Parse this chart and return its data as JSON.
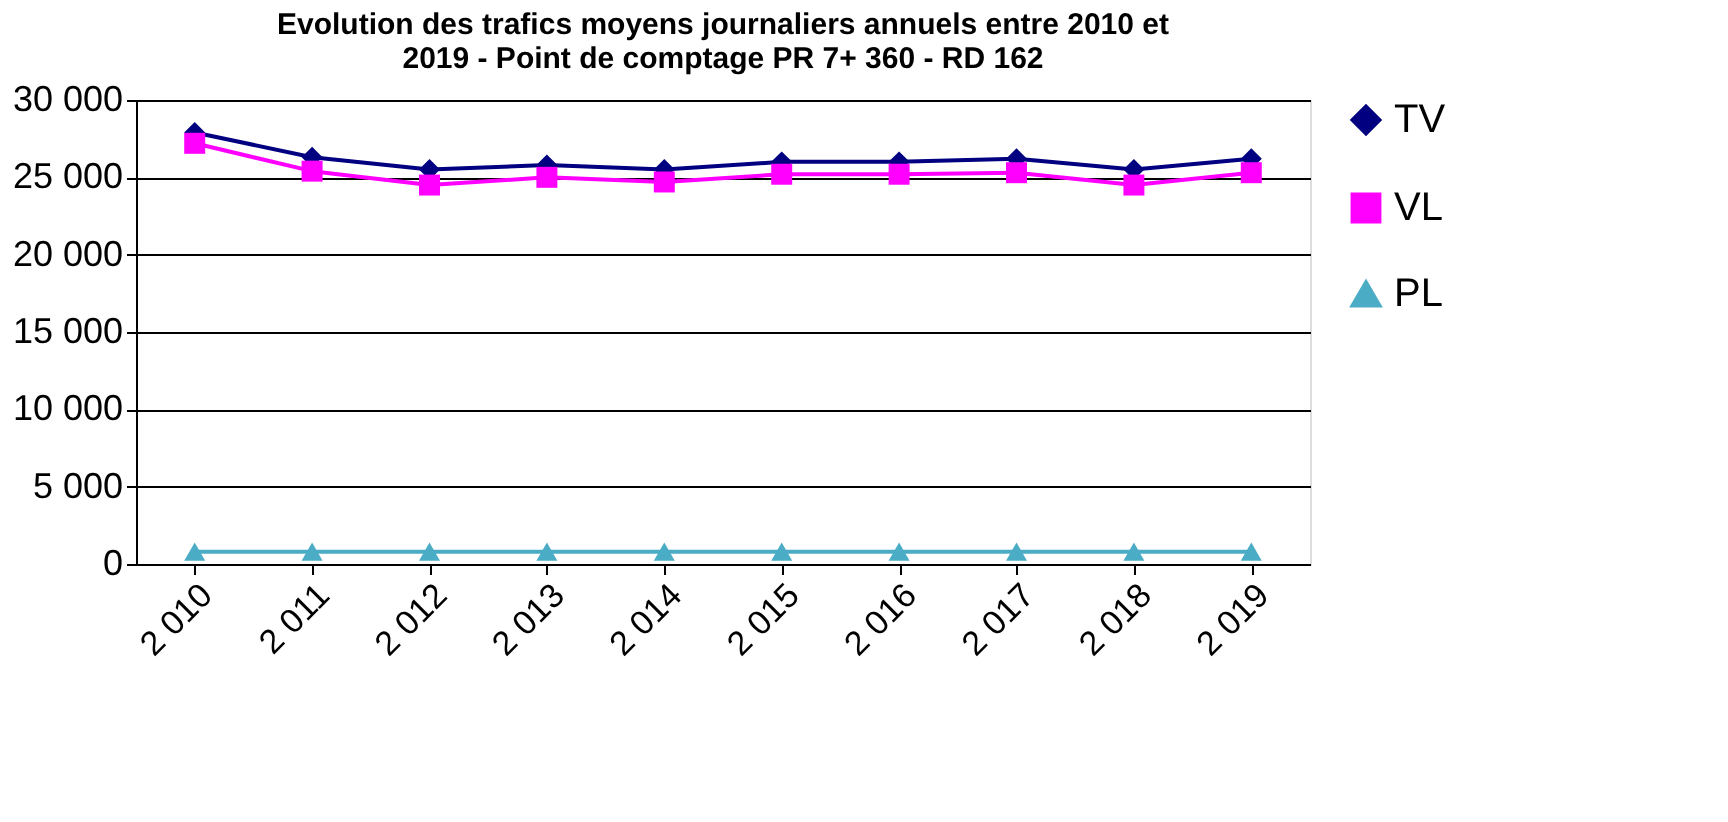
{
  "chart_data": {
    "type": "line",
    "title": [
      "Evolution des trafics moyens journaliers annuels entre 2010 et",
      "2019 - Point de comptage PR 7+ 360 - RD 162"
    ],
    "categories": [
      "2 010",
      "2 011",
      "2 012",
      "2 013",
      "2 014",
      "2 015",
      "2 016",
      "2 017",
      "2 018",
      "2 019"
    ],
    "series": [
      {
        "name": "TV",
        "color": "#000080",
        "marker": "diamond",
        "values": [
          27900,
          26300,
          25500,
          25800,
          25500,
          26000,
          26000,
          26200,
          25500,
          26200
        ]
      },
      {
        "name": "VL",
        "color": "#ff00ff",
        "marker": "square",
        "values": [
          27200,
          25400,
          24500,
          25000,
          24700,
          25200,
          25200,
          25300,
          24500,
          25300
        ]
      },
      {
        "name": "PL",
        "color": "#4bacc6",
        "marker": "triangle",
        "values": [
          800,
          800,
          800,
          800,
          800,
          800,
          800,
          800,
          800,
          800
        ]
      }
    ],
    "ylim": [
      0,
      30000
    ],
    "yticks": [
      {
        "value": 0,
        "label": "0"
      },
      {
        "value": 5000,
        "label": "5 000"
      },
      {
        "value": 10000,
        "label": "10 000"
      },
      {
        "value": 15000,
        "label": "15 000"
      },
      {
        "value": 20000,
        "label": "20 000"
      },
      {
        "value": 25000,
        "label": "25 000"
      },
      {
        "value": 30000,
        "label": "30 000"
      }
    ],
    "grid": "y",
    "legend": "right",
    "line_style": "solid"
  }
}
